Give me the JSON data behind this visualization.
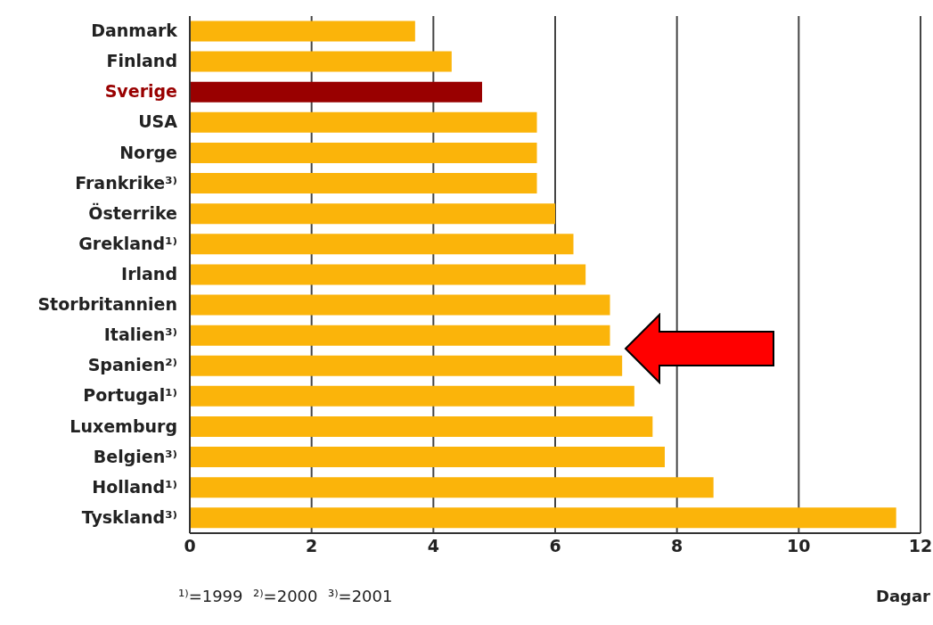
{
  "chart_data": {
    "type": "bar",
    "orientation": "horizontal",
    "categories": [
      "Danmark",
      "Finland",
      "Sverige",
      "USA",
      "Norge",
      "Frankrike³⁾",
      "Österrike",
      "Grekland¹⁾",
      "Irland",
      "Storbritannien",
      "Italien³⁾",
      "Spanien²⁾",
      "Portugal¹⁾",
      "Luxemburg",
      "Belgien³⁾",
      "Holland¹⁾",
      "Tyskland³⁾"
    ],
    "values": [
      3.7,
      4.3,
      4.8,
      5.7,
      5.7,
      5.7,
      6.0,
      6.3,
      6.5,
      6.9,
      6.9,
      7.1,
      7.3,
      7.6,
      7.8,
      8.6,
      11.6
    ],
    "colors": [
      "#fbb40a",
      "#fbb40a",
      "#990000",
      "#fbb40a",
      "#fbb40a",
      "#fbb40a",
      "#fbb40a",
      "#fbb40a",
      "#fbb40a",
      "#fbb40a",
      "#fbb40a",
      "#fbb40a",
      "#fbb40a",
      "#fbb40a",
      "#fbb40a",
      "#fbb40a",
      "#fbb40a"
    ],
    "xlim": [
      0,
      12
    ],
    "xticks": [
      0,
      2,
      4,
      6,
      8,
      10,
      12
    ],
    "grid": "x",
    "xlabel": "Dagar",
    "legend": false,
    "annotations": [
      "¹⁾=1999  ²⁾=2000  ³⁾=2001"
    ]
  }
}
